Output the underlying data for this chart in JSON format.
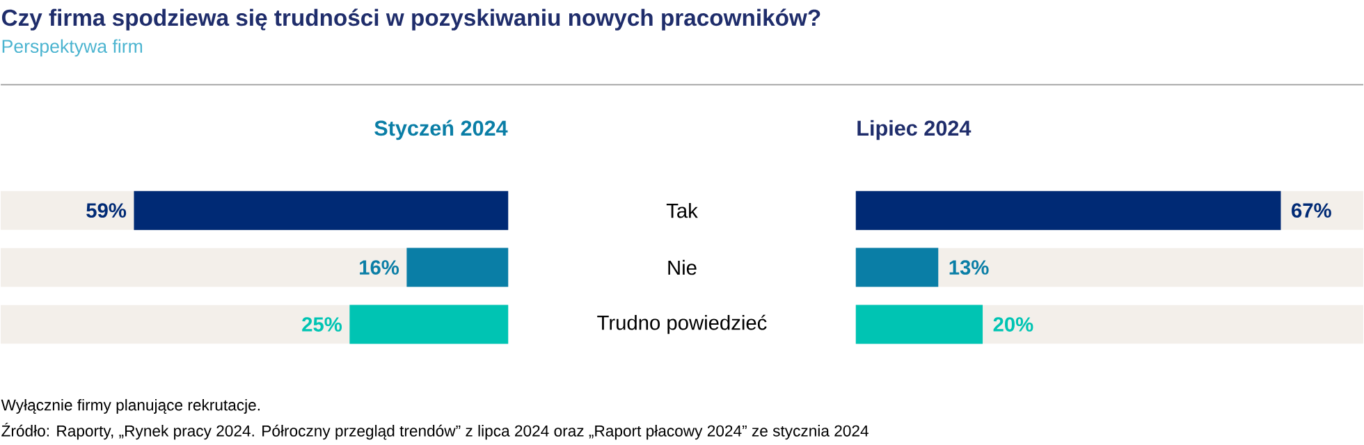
{
  "chart_data": [
    {
      "type": "bar",
      "orientation": "horizontal",
      "title": "Czy firma spodziewa się trudności w pozyskiwaniu nowych pracowników?",
      "subtitle": "Perspektywa firm",
      "xlabel": "Styczeń 2024",
      "categories": [
        "Tak",
        "Nie",
        "Trudno powiedzieć"
      ],
      "values": [
        59,
        16,
        25
      ],
      "colors": [
        "#002a75",
        "#0a7ea6",
        "#00c4b3"
      ],
      "value_labels": [
        "59%",
        "16%",
        "25%"
      ],
      "xlim": [
        80,
        0
      ],
      "tick_labels": "y",
      "annotations": [
        "Wyłącznie firmy planujące rekrutacje.",
        "Źródło: Raporty, „Rynek pracy 2024. Półroczny przegląd trendów” z lipca 2024 oraz „Raport płacowy 2024” ze stycznia 2024"
      ]
    },
    {
      "type": "bar",
      "orientation": "horizontal",
      "xlabel": "Lipiec 2024",
      "values": [
        67,
        13,
        20
      ],
      "colors": [
        "#002a75",
        "#0a7ea6",
        "#00c4b3"
      ],
      "value_labels": [
        "67%",
        "13%",
        "20%"
      ],
      "xlim": [
        0,
        80
      ],
      "tick_labels": false
    }
  ]
}
